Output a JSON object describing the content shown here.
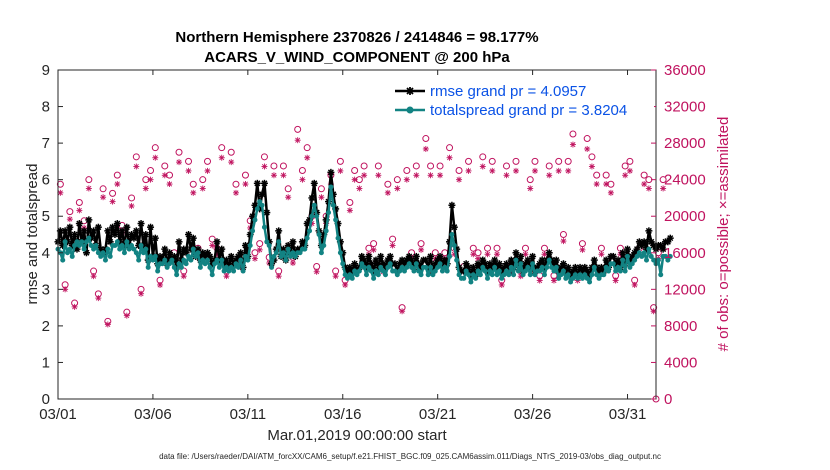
{
  "chart_data": {
    "type": "line",
    "title_line1": "Northern Hemisphere 2370826 / 2414846 = 98.177%",
    "title_line2": "ACARS_V_WIND_COMPONENT @ 200 hPa",
    "xlabel": "Mar.01,2019 00:00:00 start",
    "ylabel_left": "rmse and totalspread",
    "ylabel_right": "# of obs: o=possible; ×=assimilated",
    "footnote": "data file: /Users/raeder/DAI/ATM_forcXX/CAM6_setup/f.e21.FHIST_BGC.f09_025.CAM6assim.011/Diags_NTrS_2019-03/obs_diag_output.nc",
    "xlim": [
      0,
      31.5
    ],
    "ylim_left": [
      0,
      9
    ],
    "ylim_right": [
      0,
      36000
    ],
    "x_ticks": [
      0,
      5,
      10,
      15,
      20,
      25,
      30
    ],
    "x_tick_labels": [
      "03/01",
      "03/06",
      "03/11",
      "03/16",
      "03/21",
      "03/26",
      "03/31"
    ],
    "y_ticks_left": [
      0,
      1,
      2,
      3,
      4,
      5,
      6,
      7,
      8,
      9
    ],
    "y_tick_labels_left": [
      "0",
      "1",
      "2",
      "3",
      "4",
      "5",
      "6",
      "7",
      "8",
      "9"
    ],
    "y_ticks_right": [
      0,
      4000,
      8000,
      12000,
      16000,
      20000,
      24000,
      28000,
      32000,
      36000
    ],
    "y_tick_labels_right": [
      "0",
      "4000",
      "8000",
      "12000",
      "16000",
      "20000",
      "24000",
      "28000",
      "32000",
      "36000"
    ],
    "colors": {
      "rmse": "#000000",
      "spread": "#128383",
      "obs": "#c0135f",
      "legend_text": "#0a52e6"
    },
    "legend": [
      {
        "label": "rmse grand pr = 4.0957",
        "series": "rmse"
      },
      {
        "label": "totalspread grand pr = 3.8204",
        "series": "spread"
      }
    ],
    "rmse_hourly6": [
      4.3,
      4.6,
      4.2,
      4.6,
      4.3,
      4.7,
      4.2,
      4.5,
      4.1,
      4.8,
      4.3,
      4.6,
      4.0,
      4.9,
      4.4,
      4.6,
      4.2,
      4.7,
      4.1,
      4.0,
      4.1,
      4.6,
      4.3,
      4.7,
      4.5,
      4.8,
      4.3,
      4.6,
      4.2,
      4.7,
      4.2,
      4.5,
      4.4,
      4.6,
      4.2,
      4.8,
      4.2,
      4.5,
      3.8,
      4.7,
      3.9,
      4.4,
      3.7,
      3.9,
      3.8,
      4.1,
      3.7,
      4.0,
      3.8,
      3.9,
      3.6,
      4.3,
      3.8,
      4.1,
      4.0,
      4.5,
      4.1,
      4.4,
      3.9,
      4.1,
      3.8,
      4.0,
      3.9,
      4.0,
      3.9,
      3.7,
      3.8,
      4.3,
      3.8,
      4.1,
      3.7,
      3.8,
      3.6,
      3.9,
      3.7,
      3.8,
      3.9,
      4.0,
      3.6,
      4.2,
      3.9,
      4.5,
      5.0,
      5.3,
      5.9,
      5.2,
      5.6,
      5.9,
      5.1,
      4.3,
      3.7,
      3.8,
      4.1,
      4.6,
      3.9,
      4.1,
      3.8,
      4.2,
      4.0,
      4.3,
      3.9,
      4.1,
      4.1,
      4.3,
      4.2,
      4.8,
      4.9,
      5.5,
      5.9,
      5.1,
      4.6,
      4.2,
      4.5,
      4.9,
      5.4,
      6.2,
      5.6,
      5.2,
      4.8,
      4.3,
      4.0,
      3.6,
      3.5,
      3.6,
      3.5,
      3.7,
      3.5,
      3.6,
      3.9,
      3.8,
      3.6,
      3.9,
      3.7,
      3.5,
      3.8,
      3.6,
      3.9,
      3.7,
      3.6,
      3.8,
      3.9,
      3.7,
      3.7,
      3.5,
      3.7,
      3.8,
      3.7,
      3.8,
      3.9,
      3.8,
      3.6,
      3.9,
      3.7,
      3.6,
      3.8,
      3.8,
      3.6,
      3.9,
      3.5,
      3.7,
      3.8,
      3.9,
      3.7,
      3.8,
      3.7,
      4.3,
      5.3,
      4.7,
      4.1,
      3.6,
      3.5,
      3.5,
      3.7,
      3.6,
      3.4,
      3.6,
      3.4,
      3.7,
      3.6,
      3.8,
      3.7,
      3.5,
      3.7,
      3.6,
      3.8,
      3.6,
      3.7,
      3.5,
      3.6,
      3.7,
      3.5,
      3.8,
      3.6,
      4.0,
      3.7,
      3.9,
      3.5,
      3.7,
      3.8,
      3.6,
      3.9,
      3.5,
      3.6,
      3.7,
      3.8,
      3.6,
      3.8,
      4.0,
      3.8,
      3.7,
      3.8,
      3.5,
      3.6,
      3.7,
      3.5,
      3.6,
      3.4,
      3.5,
      3.6,
      3.4,
      3.6,
      3.5,
      3.6,
      3.5,
      3.4,
      3.6,
      3.8,
      3.6,
      3.5,
      3.6,
      3.5,
      3.8,
      3.6,
      3.9,
      3.9,
      3.7,
      3.8,
      3.6,
      4.0,
      3.7,
      4.1,
      3.8,
      3.9,
      4.0,
      4.1,
      4.3,
      4.2,
      4.3,
      4.1,
      4.6,
      4.3,
      4.2,
      4.1,
      4.2,
      4.2,
      4.1,
      4.3,
      4.3,
      4.4
    ],
    "spread_hourly6": [
      4.1,
      4.0,
      3.8,
      4.3,
      4.0,
      4.1,
      3.9,
      4.2,
      4.3,
      4.2,
      4.3,
      4.1,
      4.3,
      4.4,
      4.2,
      4.1,
      4.2,
      4.0,
      3.9,
      4.0,
      3.8,
      4.1,
      3.9,
      4.2,
      4.2,
      4.3,
      4.1,
      4.2,
      4.0,
      4.3,
      4.1,
      4.2,
      4.1,
      4.0,
      3.8,
      4.2,
      4.0,
      4.1,
      3.6,
      3.9,
      3.8,
      3.9,
      3.5,
      3.7,
      3.7,
      3.8,
      3.6,
      3.7,
      3.8,
      3.6,
      3.4,
      3.7,
      3.6,
      3.8,
      3.7,
      3.9,
      3.8,
      4.1,
      3.9,
      4.0,
      3.6,
      3.8,
      3.7,
      3.8,
      3.6,
      3.4,
      3.7,
      3.8,
      3.6,
      3.8,
      3.5,
      3.6,
      3.5,
      3.6,
      3.5,
      3.7,
      3.6,
      3.8,
      3.5,
      3.9,
      3.8,
      4.2,
      4.6,
      4.9,
      5.2,
      5.4,
      5.3,
      4.7,
      4.3,
      4.2,
      3.6,
      3.9,
      4.0,
      4.3,
      3.9,
      4.0,
      3.8,
      4.1,
      3.9,
      4.0,
      3.9,
      4.0,
      4.0,
      4.1,
      4.1,
      4.4,
      4.6,
      5.0,
      5.3,
      5.0,
      4.5,
      4.0,
      4.2,
      4.6,
      5.1,
      5.8,
      5.3,
      4.9,
      4.4,
      4.0,
      3.7,
      3.4,
      3.3,
      3.4,
      3.3,
      3.5,
      3.4,
      3.5,
      3.7,
      3.6,
      3.4,
      3.6,
      3.5,
      3.3,
      3.5,
      3.4,
      3.6,
      3.5,
      3.4,
      3.6,
      3.7,
      3.5,
      3.5,
      3.4,
      3.5,
      3.6,
      3.5,
      3.6,
      3.7,
      3.6,
      3.5,
      3.7,
      3.5,
      3.4,
      3.6,
      3.6,
      3.4,
      3.6,
      3.4,
      3.5,
      3.6,
      3.7,
      3.5,
      3.6,
      3.5,
      3.9,
      4.5,
      4.2,
      3.8,
      3.4,
      3.3,
      3.3,
      3.5,
      3.4,
      3.2,
      3.4,
      3.3,
      3.5,
      3.4,
      3.6,
      3.5,
      3.3,
      3.5,
      3.4,
      3.6,
      3.4,
      3.5,
      3.3,
      3.4,
      3.5,
      3.4,
      3.6,
      3.4,
      3.8,
      3.5,
      3.7,
      3.4,
      3.5,
      3.6,
      3.4,
      3.7,
      3.4,
      3.5,
      3.5,
      3.6,
      3.4,
      3.6,
      3.8,
      3.6,
      3.5,
      3.6,
      3.3,
      3.4,
      3.5,
      3.3,
      3.4,
      3.2,
      3.3,
      3.4,
      3.3,
      3.4,
      3.3,
      3.4,
      3.3,
      3.2,
      3.4,
      3.6,
      3.4,
      3.3,
      3.4,
      3.4,
      3.6,
      3.5,
      3.7,
      3.7,
      3.5,
      3.6,
      3.5,
      3.8,
      3.5,
      3.9,
      3.6,
      3.7,
      3.8,
      3.9,
      4.0,
      3.9,
      4.0,
      3.8,
      4.1,
      3.9,
      3.8,
      3.7,
      3.8,
      3.4,
      3.9,
      3.9,
      3.8,
      3.9
    ],
    "obs_possible_daily": [
      [
        23500,
        12500,
        20500,
        10500
      ],
      [
        21500,
        19500,
        24000,
        14000
      ],
      [
        11500,
        23000,
        8500,
        22500
      ],
      [
        24500,
        19000,
        9500,
        22000
      ],
      [
        26500,
        12000,
        24000,
        25000
      ],
      [
        27500,
        13000,
        25500,
        24500
      ],
      [
        16000,
        27000,
        14000,
        26000
      ],
      [
        23500,
        16500,
        24000,
        26000
      ],
      [
        17500,
        16500,
        27500,
        14000
      ],
      [
        27000,
        23500,
        15000,
        24500
      ],
      [
        19500,
        16000,
        17000,
        26500
      ],
      [
        15500,
        25500,
        14000,
        25500
      ],
      [
        23000,
        15500,
        29500,
        25000
      ],
      [
        27500,
        20000,
        14500,
        23000
      ],
      [
        20000,
        24500,
        14000,
        26000
      ],
      [
        13000,
        21500,
        25000,
        24000
      ],
      [
        25500,
        16500,
        17000,
        25500
      ],
      [
        14500,
        23500,
        17500,
        24000
      ],
      [
        10000,
        25000,
        16000,
        25500
      ],
      [
        17000,
        28500,
        25500,
        16000
      ],
      [
        25500,
        16000,
        27500,
        16500
      ],
      [
        25000,
        14500,
        26000,
        16500
      ],
      [
        16000,
        26500,
        16500,
        26000
      ],
      [
        16500,
        13000,
        25500,
        14500
      ],
      [
        26000,
        14000,
        16500,
        24000
      ],
      [
        26000,
        13500,
        16500,
        25500
      ],
      [
        13500,
        26000,
        18000,
        26000
      ],
      [
        29000,
        13500,
        17000,
        28500
      ],
      [
        26500,
        24500,
        16500,
        24500
      ],
      [
        23500,
        13500,
        16500,
        25500
      ],
      [
        26000,
        13000,
        16500,
        24500
      ],
      [
        24000,
        10000,
        16000,
        24000
      ]
    ]
  }
}
